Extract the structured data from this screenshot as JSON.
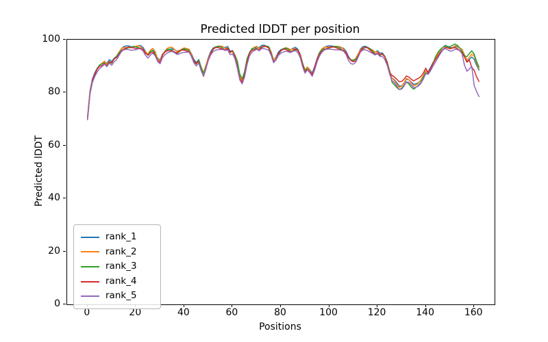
{
  "figure": {
    "background": "#ffffff"
  },
  "chart_data": {
    "type": "line",
    "title": "Predicted lDDT per position",
    "xlabel": "Positions",
    "ylabel": "Predicted lDDT",
    "xlim": [
      -8.45,
      168.45
    ],
    "ylim": [
      0,
      100
    ],
    "xticks": [
      0,
      20,
      40,
      60,
      80,
      100,
      120,
      140,
      160
    ],
    "yticks": [
      0,
      20,
      40,
      60,
      80,
      100
    ],
    "grid": false,
    "legend_position": "lower left",
    "x_start": 0,
    "x_step": 1,
    "base_values": [
      70.5,
      80.0,
      84.5,
      87.0,
      89.0,
      90.3,
      90.8,
      91.5,
      90.4,
      91.8,
      91.3,
      92.8,
      93.6,
      95.0,
      96.2,
      96.8,
      97.0,
      97.2,
      97.1,
      97.3,
      97.2,
      97.3,
      97.1,
      96.4,
      95.0,
      94.2,
      95.4,
      95.9,
      94.6,
      92.4,
      91.6,
      94.2,
      95.4,
      96.2,
      96.4,
      96.3,
      95.7,
      95.1,
      95.6,
      96.2,
      96.4,
      96.3,
      96.0,
      94.2,
      92.0,
      91.0,
      92.4,
      89.5,
      87.2,
      90.0,
      92.8,
      95.0,
      96.5,
      97.2,
      97.4,
      97.3,
      97.0,
      96.5,
      96.9,
      95.3,
      95.8,
      94.0,
      90.5,
      85.8,
      84.2,
      87.0,
      91.5,
      95.0,
      96.4,
      96.8,
      97.1,
      96.4,
      97.3,
      97.6,
      97.5,
      97.2,
      95.0,
      92.0,
      92.9,
      94.8,
      95.9,
      96.5,
      96.8,
      96.4,
      95.8,
      96.2,
      96.6,
      96.1,
      94.4,
      91.0,
      88.3,
      89.3,
      88.1,
      86.9,
      89.6,
      92.8,
      95.0,
      96.2,
      96.8,
      97.0,
      97.2,
      97.3,
      97.4,
      97.3,
      97.1,
      96.7,
      96.2,
      95.1,
      93.3,
      92.3,
      92.1,
      92.6,
      94.3,
      96.0,
      96.9,
      97.2,
      97.0,
      96.4,
      95.7,
      94.9,
      95.3,
      94.4,
      94.7,
      93.7,
      91.5,
      88.0,
      85.2,
      84.3,
      83.2,
      82.2,
      82.5,
      83.6,
      85.0,
      84.5,
      83.4,
      82.6,
      83.1,
      83.7,
      84.7,
      86.1,
      87.9,
      87.5,
      89.1,
      91.1,
      92.7,
      94.3,
      95.6,
      96.7,
      97.3,
      97.0,
      96.7,
      97.0,
      97.5,
      97.2,
      96.5,
      95.3,
      93.5,
      91.5,
      92.5,
      93.5,
      92.5,
      90.0,
      88.0
    ],
    "series": [
      {
        "name": "rank_1",
        "color": "#1f77b4",
        "offset_default": 0.25,
        "offset_ranges": [
          [
            0,
            30,
            0.35
          ]
        ]
      },
      {
        "name": "rank_2",
        "color": "#ff7f0e",
        "offset_default": 0.1,
        "offset_ranges": [
          [
            24,
            28,
            0.6
          ],
          [
            30,
            40,
            0.5
          ],
          [
            155,
            162,
            1.0
          ]
        ]
      },
      {
        "name": "rank_3",
        "color": "#2ca02c",
        "offset_default": -0.15,
        "offset_ranges": [
          [
            62,
            66,
            1.3
          ],
          [
            126,
            138,
            -1.1
          ],
          [
            144,
            156,
            0.6
          ],
          [
            157,
            162,
            2.0
          ]
        ]
      },
      {
        "name": "rank_4",
        "color": "#d62728",
        "offset_default": -0.3,
        "offset_ranges": [
          [
            46,
            49,
            -0.8
          ],
          [
            126,
            140,
            1.6
          ],
          [
            159,
            162,
            -3.8
          ]
        ]
      },
      {
        "name": "rank_5",
        "color": "#9467bd",
        "offset_default": -0.9,
        "offset_ranges": [
          [
            62,
            65,
            -1.2
          ],
          [
            88,
            94,
            -0.9
          ],
          [
            108,
            112,
            -1.1
          ],
          [
            156,
            159,
            -3.3
          ],
          [
            160,
            162,
            -9.8
          ]
        ]
      }
    ],
    "desync_wiggle": {
      "amplitude": 0.3,
      "angular_step": 0.9,
      "phase_step": 1.7
    },
    "axis_color": "#000000",
    "legend_border_color": "#b6b6b6"
  }
}
